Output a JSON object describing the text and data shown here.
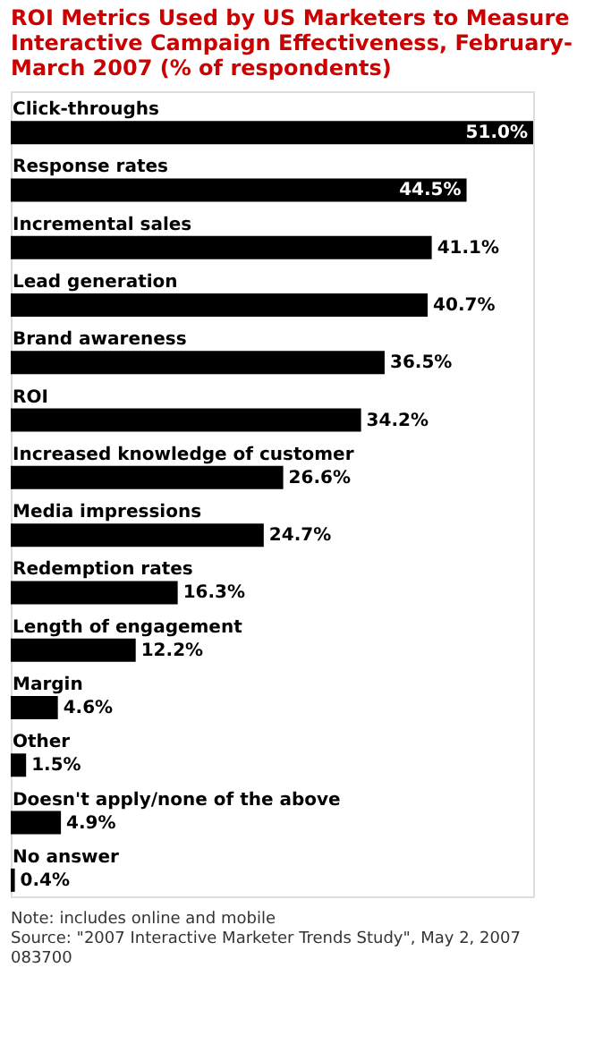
{
  "chart_data": {
    "type": "bar",
    "orientation": "horizontal",
    "title": "ROI Metrics Used by US Marketers to Measure Interactive Campaign Effectiveness, February-March 2007 (% of respondents)",
    "categories": [
      "Click-throughs",
      "Response rates",
      "Incremental sales",
      "Lead generation",
      "Brand awareness",
      "ROI",
      "Increased knowledge of customer",
      "Media impressions",
      "Redemption rates",
      "Length of engagement",
      "Margin",
      "Other",
      "Doesn't apply/none of the above",
      "No answer"
    ],
    "values": [
      51.0,
      44.5,
      41.1,
      40.7,
      36.5,
      34.2,
      26.6,
      24.7,
      16.3,
      12.2,
      4.6,
      1.5,
      4.9,
      0.4
    ],
    "value_labels": [
      "51.0%",
      "44.5%",
      "41.1%",
      "40.7%",
      "36.5%",
      "34.2%",
      "26.6%",
      "24.7%",
      "16.3%",
      "12.2%",
      "4.6%",
      "1.5%",
      "4.9%",
      "0.4%"
    ],
    "color": "#000000",
    "annotations": [
      "Note: includes online and mobile",
      "Source: \"2007 Interactive Marketer Trends Study\", May 2, 2007",
      "083700"
    ]
  }
}
